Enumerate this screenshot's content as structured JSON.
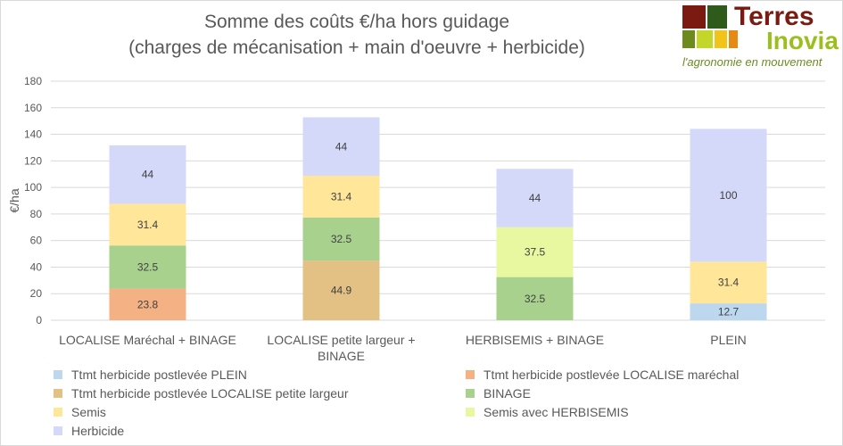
{
  "logo": {
    "word1": "Terres",
    "word2": "Inovia",
    "tagline": "l'agronomie en mouvement"
  },
  "chart_data": {
    "type": "bar",
    "stacked": true,
    "title_line1": "Somme des coûts €/ha hors guidage",
    "title_line2": "(charges de mécanisation + main d'oeuvre + herbicide)",
    "ylabel": "€/ha",
    "xlabel": "",
    "ylim": [
      0,
      180
    ],
    "yticks": [
      0,
      20,
      40,
      60,
      80,
      100,
      120,
      140,
      160,
      180
    ],
    "grid": true,
    "legend_position": "bottom",
    "categories": [
      "LOCALISE Maréchal + BINAGE",
      "LOCALISE petite largeur + BINAGE",
      "HERBISEMIS + BINAGE",
      "PLEIN"
    ],
    "series": [
      {
        "name": "Ttmt herbicide postlevée PLEIN",
        "color": "#bdd7ee",
        "values": [
          null,
          null,
          null,
          12.7
        ]
      },
      {
        "name": "Ttmt herbicide postlevée LOCALISE maréchal",
        "color": "#f4b183",
        "values": [
          23.8,
          null,
          null,
          null
        ]
      },
      {
        "name": "Ttmt herbicide postlevée LOCALISE petite largeur",
        "color": "#e3c084",
        "values": [
          null,
          44.9,
          null,
          null
        ]
      },
      {
        "name": "BINAGE",
        "color": "#a9d18e",
        "values": [
          32.5,
          32.5,
          32.5,
          null
        ]
      },
      {
        "name": "Semis",
        "color": "#ffe699",
        "values": [
          31.4,
          31.4,
          null,
          31.4
        ]
      },
      {
        "name": "Semis avec HERBISEMIS",
        "color": "#e8f8a0",
        "values": [
          null,
          null,
          37.5,
          null
        ]
      },
      {
        "name": "Herbicide",
        "color": "#d4d9fa",
        "values": [
          44,
          44,
          44,
          100
        ]
      }
    ]
  }
}
